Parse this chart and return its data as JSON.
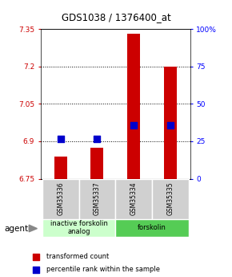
{
  "title": "GDS1038 / 1376400_at",
  "samples": [
    "GSM35336",
    "GSM35337",
    "GSM35334",
    "GSM35335"
  ],
  "red_values": [
    6.84,
    6.875,
    7.33,
    7.2
  ],
  "blue_values": [
    6.91,
    6.91,
    6.965,
    6.965
  ],
  "ylim_left": [
    6.75,
    7.35
  ],
  "ylim_right": [
    0,
    100
  ],
  "yticks_left": [
    6.75,
    6.9,
    7.05,
    7.2,
    7.35
  ],
  "yticks_right": [
    0,
    25,
    50,
    75,
    100
  ],
  "ytick_labels_left": [
    "6.75",
    "6.9",
    "7.05",
    "7.2",
    "7.35"
  ],
  "ytick_labels_right": [
    "0",
    "25",
    "50",
    "75",
    "100%"
  ],
  "hlines": [
    6.9,
    7.05,
    7.2
  ],
  "groups": [
    {
      "label": "inactive forskolin\nanalog",
      "samples": [
        0,
        1
      ],
      "color": "#ccffcc"
    },
    {
      "label": "forskolin",
      "samples": [
        2,
        3
      ],
      "color": "#55cc55"
    }
  ],
  "agent_label": "agent",
  "legend_red": "transformed count",
  "legend_blue": "percentile rank within the sample",
  "bar_width": 0.35,
  "bar_bottom": 6.75,
  "bar_color": "#cc0000",
  "dot_color": "#0000cc",
  "dot_size": 28,
  "title_fontsize": 8.5,
  "tick_fontsize": 6.5,
  "sample_fontsize": 5.5,
  "group_fontsize": 6.0,
  "legend_fontsize": 6.0,
  "agent_fontsize": 7.5
}
